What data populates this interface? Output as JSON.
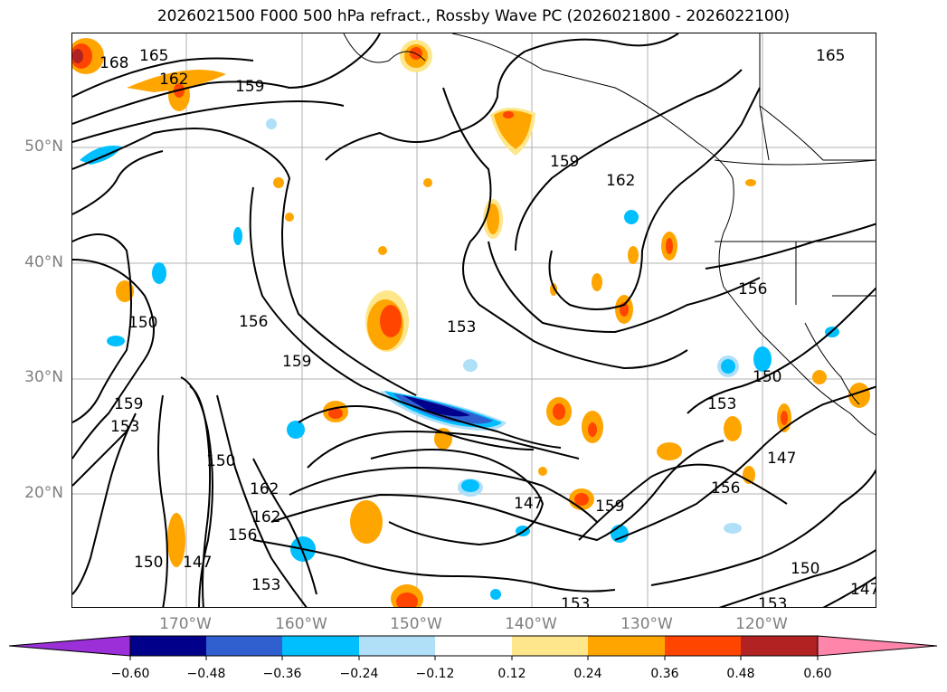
{
  "title": "2026021500 F000 500 hPa refract., Rossby Wave PC (2026021800 - 2026022100)",
  "lat_labels": [
    "50°N",
    "40°N",
    "30°N",
    "20°N"
  ],
  "lon_labels": [
    "170°W",
    "160°W",
    "150°W",
    "140°W",
    "130°W",
    "120°W"
  ],
  "colorbar": {
    "ticks": [
      "−0.60",
      "−0.48",
      "−0.36",
      "−0.24",
      "−0.12",
      "0.12",
      "0.24",
      "0.36",
      "0.48",
      "0.60"
    ],
    "colors": [
      "#9b30d9",
      "#00008b",
      "#3060d0",
      "#00bfff",
      "#b0e0f8",
      "#ffffff",
      "#fee68a",
      "#ffa500",
      "#ff4500",
      "#b22222",
      "#ff85aa"
    ]
  },
  "contour_labels": [
    "168",
    "165",
    "162",
    "159",
    "159",
    "162",
    "165",
    "156",
    "156",
    "159",
    "153",
    "159",
    "153",
    "150",
    "162",
    "162",
    "156",
    "153",
    "150",
    "147",
    "150",
    "147",
    "159",
    "153",
    "150",
    "156",
    "147",
    "150",
    "153",
    "153",
    "147"
  ]
}
